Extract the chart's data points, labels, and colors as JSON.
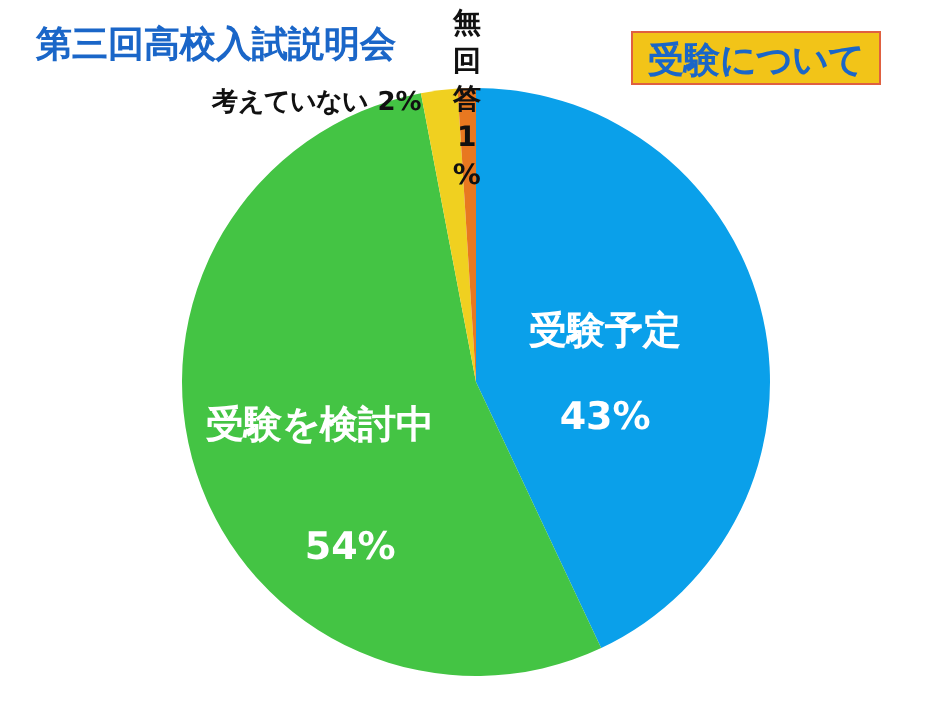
{
  "chart_data": {
    "type": "pie",
    "title": "第三回高校入試説明会",
    "subtitle": "受験について",
    "categories": [
      "受験予定",
      "受験を検討中",
      "考えていない",
      "無回答"
    ],
    "values": [
      43,
      54,
      2,
      1
    ],
    "colors": [
      "#0aa0ea",
      "#44c444",
      "#f0d020",
      "#e87820"
    ],
    "value_labels": [
      "43%",
      "54%",
      "2%",
      "1%"
    ]
  }
}
